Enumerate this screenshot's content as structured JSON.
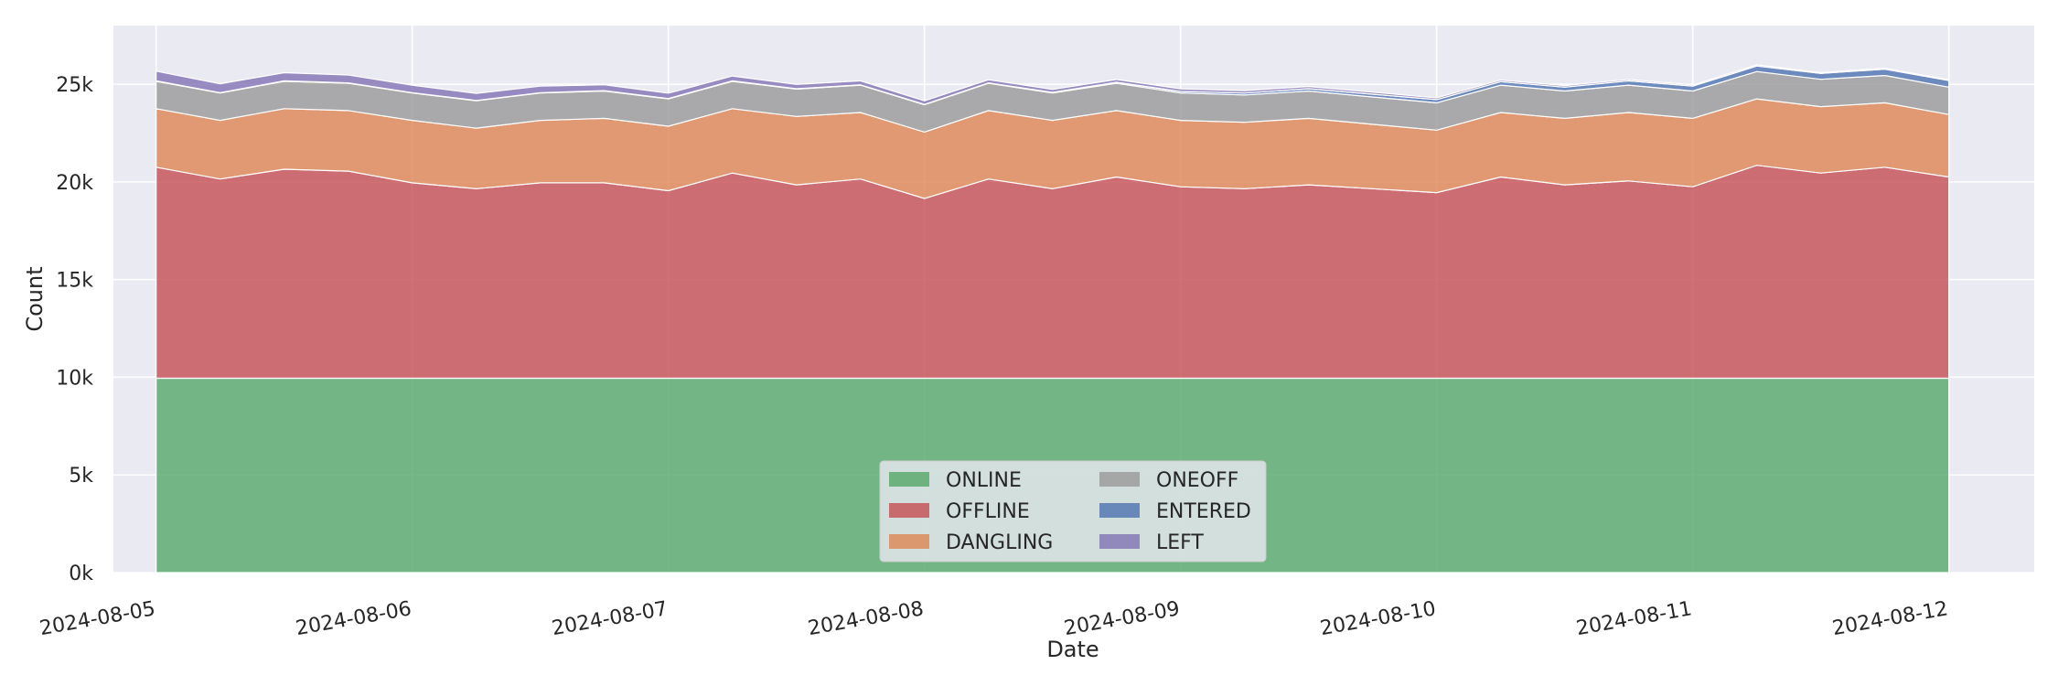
{
  "chart_data": {
    "type": "area",
    "stacked": true,
    "title": "",
    "xlabel": "Date",
    "ylabel": "Count",
    "x_range": [
      "2024-08-04T20:00",
      "2024-08-12T08:00"
    ],
    "x_ticks": [
      "2024-08-05",
      "2024-08-06",
      "2024-08-07",
      "2024-08-08",
      "2024-08-09",
      "2024-08-10",
      "2024-08-11",
      "2024-08-12"
    ],
    "ylim": [
      0,
      28000
    ],
    "y_ticks": [
      0,
      5000,
      10000,
      15000,
      20000,
      25000
    ],
    "y_tick_labels": [
      "0k",
      "5k",
      "10k",
      "15k",
      "20k",
      "25k"
    ],
    "grid": true,
    "legend": {
      "placement": "lower-center",
      "columns": 2
    },
    "x": [
      "2024-08-05T00:00",
      "2024-08-05T06:00",
      "2024-08-05T12:00",
      "2024-08-05T18:00",
      "2024-08-06T00:00",
      "2024-08-06T06:00",
      "2024-08-06T12:00",
      "2024-08-06T18:00",
      "2024-08-07T00:00",
      "2024-08-07T06:00",
      "2024-08-07T12:00",
      "2024-08-07T18:00",
      "2024-08-08T00:00",
      "2024-08-08T06:00",
      "2024-08-08T12:00",
      "2024-08-08T18:00",
      "2024-08-09T00:00",
      "2024-08-09T06:00",
      "2024-08-09T12:00",
      "2024-08-09T18:00",
      "2024-08-10T00:00",
      "2024-08-10T06:00",
      "2024-08-10T12:00",
      "2024-08-10T18:00",
      "2024-08-11T00:00",
      "2024-08-11T06:00",
      "2024-08-11T12:00",
      "2024-08-11T18:00",
      "2024-08-12T00:00"
    ],
    "series": [
      {
        "name": "ONLINE",
        "color": "#55a868",
        "values": [
          9950,
          9950,
          9950,
          9950,
          9950,
          9950,
          9950,
          9950,
          9950,
          9950,
          9950,
          9950,
          9950,
          9950,
          9950,
          9950,
          9950,
          9950,
          9950,
          9950,
          9950,
          9950,
          9950,
          9950,
          9950,
          9950,
          9950,
          9950,
          9950
        ]
      },
      {
        "name": "OFFLINE",
        "color": "#c44e52",
        "values": [
          10800,
          10200,
          10700,
          10600,
          10000,
          9700,
          10000,
          10000,
          9600,
          10500,
          9900,
          10200,
          9200,
          10200,
          9700,
          10300,
          9800,
          9700,
          9900,
          9700,
          9500,
          10300,
          9900,
          10100,
          9800,
          10900,
          10500,
          10800,
          10300
        ]
      },
      {
        "name": "DANGLING",
        "color": "#dd8452",
        "values": [
          3000,
          3000,
          3100,
          3100,
          3200,
          3100,
          3200,
          3300,
          3300,
          3300,
          3500,
          3400,
          3400,
          3500,
          3500,
          3400,
          3400,
          3400,
          3400,
          3300,
          3200,
          3300,
          3400,
          3500,
          3500,
          3400,
          3400,
          3300,
          3200
        ]
      },
      {
        "name": "ONEOFF",
        "color": "#999999",
        "values": [
          1400,
          1400,
          1400,
          1400,
          1400,
          1400,
          1400,
          1400,
          1400,
          1400,
          1400,
          1400,
          1400,
          1400,
          1400,
          1400,
          1400,
          1400,
          1400,
          1400,
          1400,
          1400,
          1400,
          1400,
          1400,
          1400,
          1400,
          1400,
          1400
        ]
      },
      {
        "name": "ENTERED",
        "color": "#4c72b0",
        "values": [
          20,
          20,
          20,
          20,
          20,
          20,
          20,
          20,
          20,
          20,
          20,
          20,
          20,
          20,
          30,
          50,
          80,
          100,
          120,
          140,
          160,
          180,
          200,
          220,
          250,
          280,
          300,
          320,
          340
        ]
      },
      {
        "name": "LEFT",
        "color": "#8172b3",
        "values": [
          500,
          450,
          420,
          400,
          380,
          360,
          330,
          300,
          270,
          250,
          220,
          200,
          180,
          160,
          150,
          140,
          130,
          120,
          110,
          100,
          90,
          80,
          80,
          70,
          60,
          60,
          50,
          50,
          40
        ]
      }
    ]
  }
}
